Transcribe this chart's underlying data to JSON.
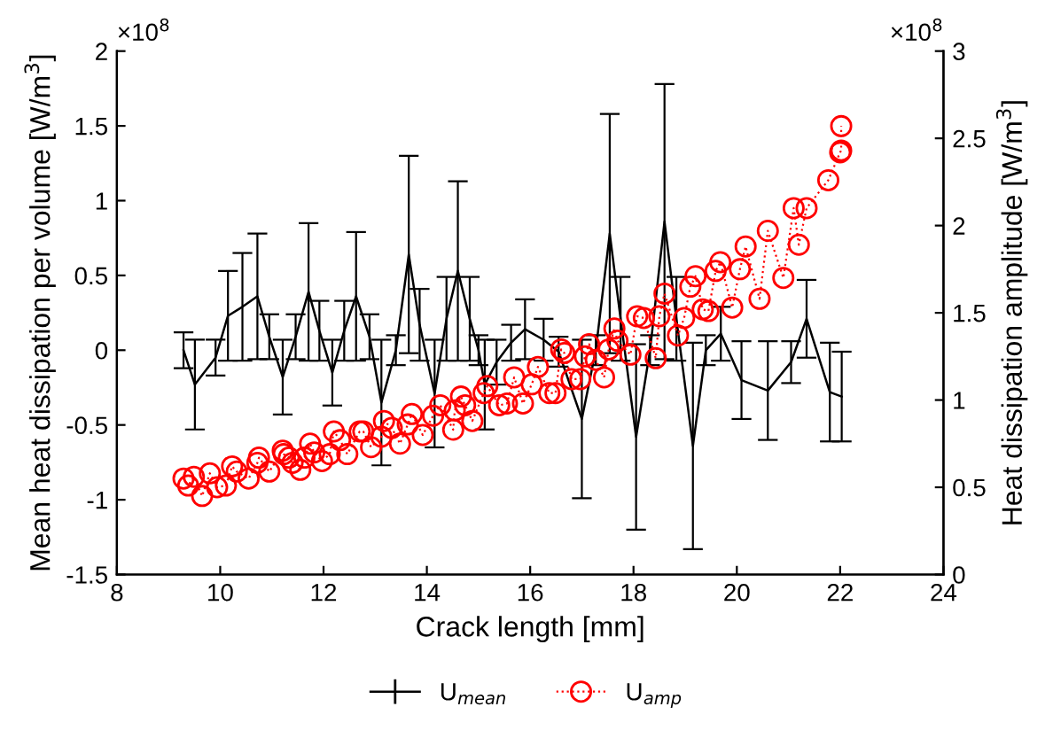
{
  "chart_data": {
    "type": "line",
    "xlabel": "Crack length [mm]",
    "ylabel": "Mean heat dissipation per volume [W/m$^{3}$]",
    "y2label": "Heat dissipation amplitude [W/m$^{3}$]",
    "annotations": [
      "×10$^{8}$",
      "×10$^{8}$"
    ],
    "xlim": [
      8,
      24
    ],
    "xticks": [
      8,
      10,
      12,
      14,
      16,
      18,
      20,
      22,
      24
    ],
    "ylim": [
      -1.5,
      2
    ],
    "yticks": [
      -1.5,
      -1,
      -0.5,
      0,
      0.5,
      1,
      1.5,
      2
    ],
    "y2lim": [
      0,
      3
    ],
    "y2ticks": [
      0,
      0.5,
      1,
      1.5,
      2,
      2.5,
      3
    ],
    "grid": false,
    "legend": "bottom",
    "series": [
      {
        "name": "U$_{mean}$",
        "color": "#000000",
        "marker": "none",
        "line_style": "solid",
        "x": [
          9.29,
          9.51,
          9.91,
          10.15,
          10.43,
          10.72,
          10.95,
          11.21,
          11.46,
          11.71,
          11.92,
          12.17,
          12.4,
          12.63,
          12.89,
          13.12,
          13.4,
          13.65,
          13.86,
          14.15,
          14.38,
          14.6,
          14.83,
          15.0,
          15.12,
          15.35,
          15.63,
          15.9,
          16.26,
          16.55,
          17.0,
          17.27,
          17.54,
          17.75,
          18.05,
          18.32,
          18.6,
          18.83,
          19.15,
          19.4,
          19.69,
          20.09,
          20.6,
          21.05,
          21.35,
          21.8,
          22.03
        ],
        "values": [
          0,
          -0.23,
          -0.05,
          0.23,
          0.29,
          0.36,
          0.09,
          -0.18,
          0.09,
          0.39,
          0.13,
          -0.15,
          0.13,
          0.36,
          0.09,
          -0.35,
          0,
          0.64,
          0.17,
          -0.29,
          0.21,
          0.53,
          0.21,
          0,
          -0.23,
          -0.08,
          0.05,
          0.14,
          0.07,
          -0.01,
          -0.46,
          0,
          0.78,
          0.21,
          -0.58,
          0,
          0.86,
          0.21,
          -0.64,
          0,
          0.11,
          -0.2,
          -0.27,
          -0.08,
          0.21,
          -0.28,
          -0.31
        ],
        "errors": [
          0.12,
          0.3,
          0.12,
          0.3,
          0.36,
          0.42,
          0.15,
          0.25,
          0.15,
          0.46,
          0.2,
          0.22,
          0.2,
          0.43,
          0.15,
          0.42,
          0.1,
          0.66,
          0.24,
          0.36,
          0.28,
          0.6,
          0.28,
          0.1,
          0.3,
          0.15,
          0.12,
          0.2,
          0.14,
          0.1,
          0.53,
          0.1,
          0.8,
          0.28,
          0.62,
          0.1,
          0.92,
          0.28,
          0.69,
          0.1,
          0.18,
          0.26,
          0.33,
          0.14,
          0.26,
          0.33,
          0.3
        ]
      },
      {
        "name": "U$_{amp}$",
        "color": "#ff0000",
        "axis": "y2",
        "marker": "circle",
        "line_style": "dotted",
        "x": [
          9.29,
          9.38,
          9.49,
          9.65,
          9.8,
          9.94,
          10.11,
          10.23,
          10.32,
          10.55,
          10.72,
          10.75,
          10.95,
          11.21,
          11.23,
          11.33,
          11.4,
          11.55,
          11.63,
          11.74,
          11.82,
          11.97,
          12.12,
          12.2,
          12.32,
          12.46,
          12.7,
          12.77,
          12.92,
          13.12,
          13.17,
          13.32,
          13.48,
          13.63,
          13.71,
          13.92,
          14.12,
          14.26,
          14.51,
          14.54,
          14.66,
          14.74,
          14.88,
          15.1,
          15.17,
          15.4,
          15.55,
          15.69,
          15.86,
          16.03,
          16.15,
          16.37,
          16.49,
          16.6,
          16.66,
          16.8,
          16.97,
          17.06,
          17.14,
          17.27,
          17.43,
          17.52,
          17.63,
          17.69,
          17.94,
          18.07,
          18.2,
          18.43,
          18.5,
          18.6,
          18.86,
          18.98,
          19.1,
          19.2,
          19.34,
          19.45,
          19.59,
          19.68,
          19.91,
          20.06,
          20.17,
          20.44,
          20.6,
          20.9,
          21.1,
          21.2,
          21.35,
          21.77,
          22.0,
          22.02,
          22.02
        ],
        "values": [
          0.55,
          0.51,
          0.56,
          0.45,
          0.58,
          0.5,
          0.51,
          0.62,
          0.59,
          0.55,
          0.64,
          0.67,
          0.59,
          0.71,
          0.69,
          0.67,
          0.64,
          0.6,
          0.67,
          0.75,
          0.7,
          0.65,
          0.69,
          0.82,
          0.77,
          0.69,
          0.82,
          0.82,
          0.73,
          0.79,
          0.88,
          0.84,
          0.75,
          0.86,
          0.92,
          0.8,
          0.91,
          0.97,
          0.83,
          0.94,
          1.02,
          0.97,
          0.88,
          1.04,
          1.08,
          0.97,
          0.98,
          1.13,
          0.98,
          1.09,
          1.19,
          1.04,
          1.04,
          1.29,
          1.27,
          1.12,
          1.12,
          1.25,
          1.32,
          1.23,
          1.13,
          1.29,
          1.41,
          1.34,
          1.26,
          1.48,
          1.47,
          1.24,
          1.48,
          1.61,
          1.37,
          1.47,
          1.65,
          1.71,
          1.52,
          1.51,
          1.74,
          1.79,
          1.53,
          1.75,
          1.88,
          1.58,
          1.97,
          1.7,
          2.1,
          1.89,
          2.1,
          2.26,
          2.42,
          2.43,
          2.57
        ]
      }
    ]
  }
}
